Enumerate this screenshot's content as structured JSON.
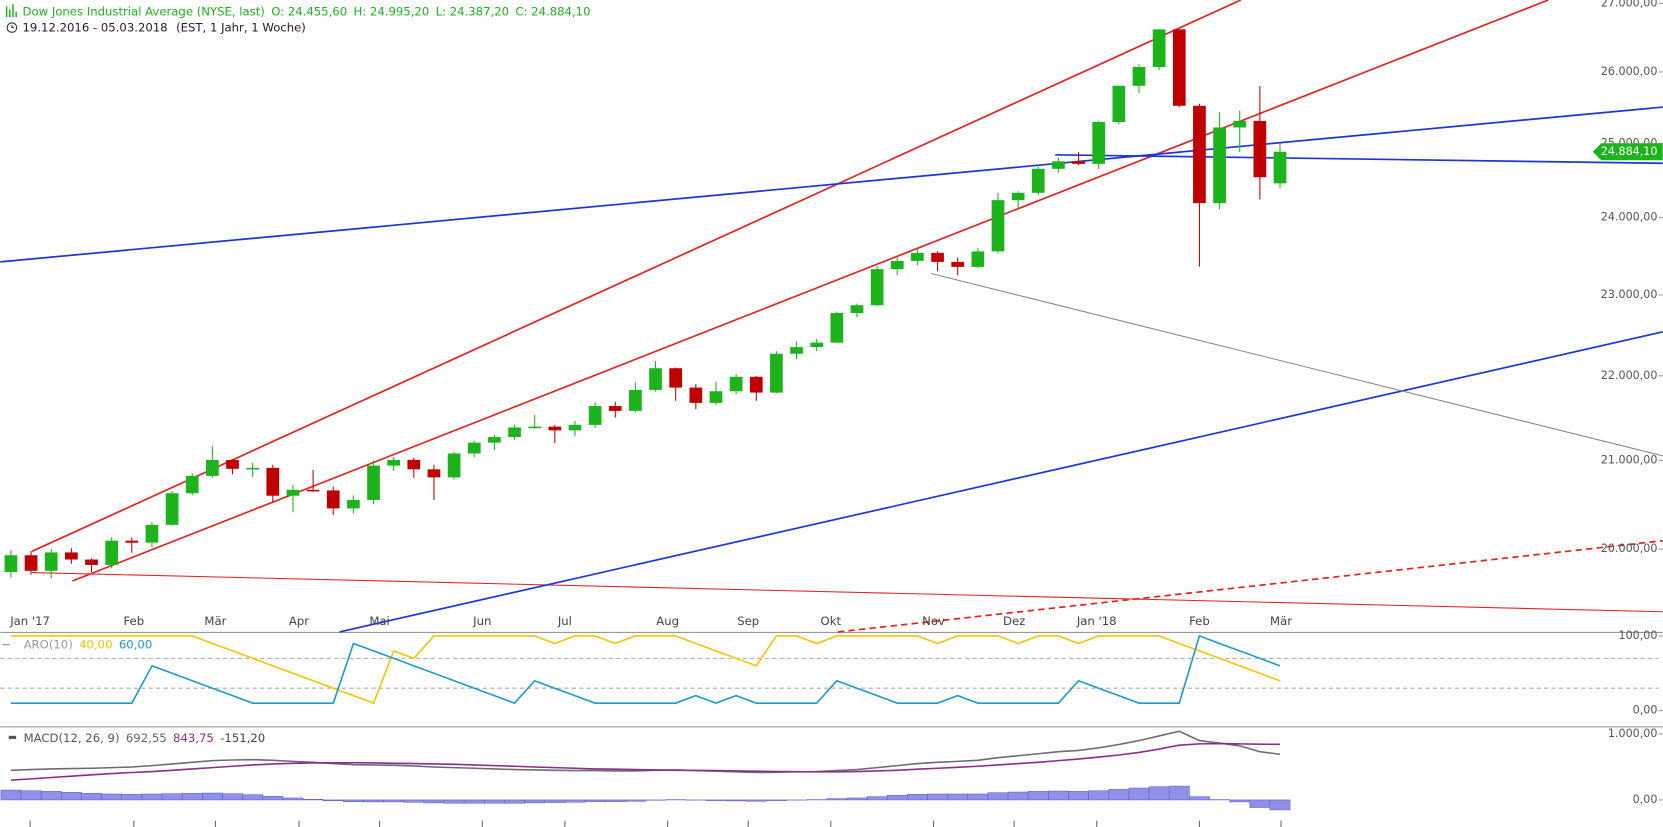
{
  "chart_data": [
    {
      "type": "candlestick",
      "title": "Dow Jones Industrial Average (NYSE, last)",
      "ohlc_labels": [
        "O: 24.455,60",
        "H: 24.995,20",
        "L: 24.387,20",
        "C: 24.884,10"
      ],
      "date_range": "19.12.2016 - 05.03.2018",
      "subtitle": "(EST, 1 Jahr, 1 Woche)",
      "log_scale": true,
      "up_color": "#1db31d",
      "down_color": "#c00000",
      "xlim": [
        -0.53,
        82
      ],
      "xticks": [
        {
          "value": 0.95,
          "label": "Jan '17"
        },
        {
          "value": 6.1,
          "label": "Feb"
        },
        {
          "value": 10.15,
          "label": "Mär"
        },
        {
          "value": 14.3,
          "label": "Apr"
        },
        {
          "value": 18.3,
          "label": "Mai"
        },
        {
          "value": 23.4,
          "label": "Jun"
        },
        {
          "value": 27.5,
          "label": "Jul"
        },
        {
          "value": 32.6,
          "label": "Aug"
        },
        {
          "value": 36.6,
          "label": "Sep"
        },
        {
          "value": 40.7,
          "label": "Okt"
        },
        {
          "value": 45.8,
          "label": "Nov"
        },
        {
          "value": 49.8,
          "label": "Dez"
        },
        {
          "value": 53.9,
          "label": "Jan '18"
        },
        {
          "value": 59,
          "label": "Feb"
        },
        {
          "value": 63.05,
          "label": "Mär"
        }
      ],
      "ylim": [
        19110,
        27050
      ],
      "yticks": [
        {
          "value": 20000,
          "label": "20.000,00"
        },
        {
          "value": 21000,
          "label": "21.000,00"
        },
        {
          "value": 22000,
          "label": "22.000,00"
        },
        {
          "value": 23000,
          "label": "23.000,00"
        },
        {
          "value": 24000,
          "label": "24.000,00"
        },
        {
          "value": 25000,
          "label": "25.000,00"
        },
        {
          "value": 26000,
          "label": "26.000,00"
        },
        {
          "value": 27000,
          "label": "27.000,00"
        }
      ],
      "last_price": {
        "value": 24884.1,
        "label": "24.884,10"
      },
      "open": [
        19750,
        19933,
        19763,
        19964,
        19886,
        19827,
        20093,
        20071,
        20269,
        20624,
        20822,
        21005,
        20903,
        20914,
        20596,
        20663,
        20656,
        20453,
        20548,
        20940,
        21006,
        20897,
        20805,
        21080,
        21206,
        21271,
        21384,
        21394,
        21350,
        21414,
        21637,
        21580,
        21830,
        22092,
        21858,
        21675,
        21814,
        21988,
        21798,
        22268,
        22350,
        22405,
        22773,
        22871,
        23329,
        23434,
        23539,
        23422,
        23358,
        23558,
        24231,
        24329,
        24652,
        24754,
        24719,
        25295,
        25803,
        26072,
        26617,
        25521,
        24191,
        25219,
        25310,
        24455.6
      ],
      "high": [
        19990,
        19980,
        20000,
        20010,
        19900,
        20130,
        20130,
        20300,
        20650,
        20850,
        21170,
        21010,
        20970,
        20950,
        20720,
        20890,
        20700,
        20600,
        21000,
        21040,
        21030,
        20950,
        21100,
        21230,
        21300,
        21410,
        21530,
        21410,
        21460,
        21680,
        21690,
        21920,
        22180,
        22100,
        21900,
        21930,
        22020,
        22000,
        22300,
        22420,
        22450,
        22790,
        22890,
        23370,
        23480,
        23600,
        23560,
        23480,
        23600,
        24330,
        24350,
        24680,
        24800,
        24880,
        25310,
        25810,
        26110,
        26620,
        26620,
        25550,
        25430,
        25450,
        25800,
        24995.2
      ],
      "low": [
        19690,
        19720,
        19680,
        19840,
        19750,
        19790,
        19960,
        20020,
        20260,
        20600,
        20800,
        20840,
        20810,
        20520,
        20410,
        20640,
        20380,
        20400,
        20500,
        20880,
        20800,
        20550,
        20780,
        21040,
        21120,
        21240,
        21370,
        21200,
        21280,
        21380,
        21500,
        21560,
        21810,
        21700,
        21600,
        21650,
        21780,
        21700,
        21790,
        22200,
        22300,
        22400,
        22720,
        22860,
        23250,
        23380,
        23300,
        23250,
        23340,
        23530,
        24110,
        24300,
        24600,
        24700,
        24650,
        25260,
        25700,
        26030,
        25500,
        23360,
        24110,
        24880,
        24240,
        24387.2
      ],
      "close": [
        19933,
        19763,
        19964,
        19886,
        19827,
        20093,
        20071,
        20269,
        20624,
        20822,
        21005,
        20903,
        20914,
        20596,
        20663,
        20656,
        20453,
        20548,
        20940,
        21006,
        20897,
        20805,
        21080,
        21206,
        21271,
        21384,
        21394,
        21350,
        21414,
        21637,
        21580,
        21830,
        22092,
        21858,
        21675,
        21814,
        21988,
        21798,
        22268,
        22350,
        22405,
        22773,
        22871,
        23329,
        23434,
        23539,
        23422,
        23358,
        23558,
        24231,
        24329,
        24652,
        24754,
        24719,
        25295,
        25803,
        26072,
        26617,
        25521,
        24191,
        25219,
        25310,
        24538,
        24884.1
      ]
    },
    {
      "type": "line",
      "title": "ARO(10)",
      "ylim": [
        -21,
        104
      ],
      "yticks": [
        {
          "value": 100,
          "label": "100,00"
        },
        {
          "value": 0,
          "label": "0,00"
        }
      ],
      "levels": [
        70,
        30
      ],
      "series": [
        {
          "color": "#f5c400",
          "label": "40,00",
          "values": [
            100,
            100,
            100,
            100,
            100,
            100,
            100,
            100,
            100,
            100,
            90,
            80,
            70,
            60,
            50,
            40,
            30,
            20,
            10,
            80,
            70,
            100,
            100,
            100,
            100,
            100,
            100,
            90,
            100,
            100,
            90,
            100,
            100,
            100,
            90,
            80,
            70,
            60,
            100,
            100,
            90,
            100,
            100,
            100,
            100,
            100,
            90,
            100,
            100,
            100,
            90,
            100,
            100,
            90,
            100,
            100,
            100,
            100,
            90,
            80,
            70,
            60,
            50,
            40
          ]
        },
        {
          "color": "#1b9cc4",
          "label": "60,00",
          "values": [
            10,
            10,
            10,
            10,
            10,
            10,
            10,
            60,
            50,
            40,
            30,
            20,
            10,
            10,
            10,
            10,
            10,
            90,
            80,
            70,
            60,
            50,
            40,
            30,
            20,
            10,
            40,
            30,
            20,
            10,
            10,
            10,
            10,
            10,
            20,
            10,
            20,
            10,
            10,
            10,
            10,
            40,
            30,
            20,
            10,
            10,
            10,
            20,
            10,
            10,
            10,
            10,
            10,
            40,
            30,
            20,
            10,
            10,
            10,
            100,
            90,
            80,
            70,
            60
          ]
        }
      ]
    },
    {
      "type": "macd",
      "title": "MACD(12, 26, 9)",
      "ylim": [
        -410,
        1100
      ],
      "yticks": [
        {
          "value": 1000,
          "label": "1.000,00"
        },
        {
          "value": 0,
          "label": "0,00"
        }
      ],
      "series": [
        {
          "color": "#6b6b7b",
          "label": "692,55",
          "values": [
            450,
            460,
            470,
            475,
            480,
            490,
            500,
            520,
            545,
            570,
            595,
            605,
            610,
            600,
            585,
            570,
            550,
            535,
            530,
            525,
            515,
            500,
            490,
            480,
            470,
            460,
            455,
            450,
            445,
            445,
            440,
            440,
            450,
            455,
            445,
            435,
            425,
            415,
            420,
            425,
            430,
            445,
            460,
            490,
            520,
            550,
            570,
            585,
            600,
            640,
            670,
            700,
            730,
            750,
            790,
            840,
            900,
            970,
            1040,
            900,
            860,
            820,
            730,
            692.55
          ]
        },
        {
          "color": "#8a2c8a",
          "label": "843,75",
          "values": [
            300,
            320,
            340,
            360,
            380,
            400,
            415,
            430,
            450,
            470,
            490,
            510,
            530,
            545,
            555,
            560,
            562,
            563,
            560,
            555,
            550,
            545,
            540,
            530,
            520,
            510,
            500,
            490,
            480,
            470,
            465,
            460,
            455,
            450,
            448,
            445,
            440,
            435,
            430,
            428,
            425,
            425,
            430,
            440,
            450,
            465,
            480,
            495,
            510,
            530,
            550,
            570,
            595,
            620,
            650,
            680,
            720,
            770,
            830,
            850,
            855,
            850,
            845,
            843.75
          ]
        }
      ],
      "histogram": {
        "color": "#9090e8",
        "label": "-151,20",
        "values": [
          150,
          140,
          130,
          115,
          100,
          90,
          85,
          90,
          95,
          100,
          105,
          95,
          80,
          55,
          30,
          10,
          -12,
          -28,
          -30,
          -30,
          -35,
          -45,
          -50,
          -50,
          -50,
          -50,
          -45,
          -40,
          -35,
          -25,
          -25,
          -20,
          -5,
          5,
          -3,
          -10,
          -15,
          -20,
          -10,
          -3,
          5,
          20,
          30,
          50,
          70,
          85,
          90,
          90,
          90,
          110,
          120,
          130,
          135,
          130,
          140,
          160,
          180,
          200,
          210,
          50,
          5,
          -30,
          -115,
          -151.2
        ]
      }
    }
  ]
}
